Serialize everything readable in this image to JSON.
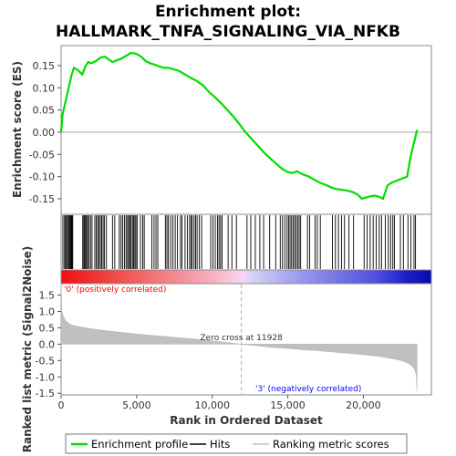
{
  "chart_data": [
    {
      "type": "line",
      "title": "Enrichment plot:",
      "subtitle": "HALLMARK_TNFA_SIGNALING_VIA_NFKB",
      "ylabel": "Enrichment score (ES)",
      "xlim": [
        0,
        24500
      ],
      "ylim": [
        -0.185,
        0.195
      ],
      "y_ticks": [
        "0.15",
        "0.10",
        "0.05",
        "0.00",
        "-0.05",
        "-0.10",
        "-0.15"
      ],
      "y_tick_values": [
        0.15,
        0.1,
        0.05,
        0.0,
        -0.05,
        -0.1,
        -0.15
      ],
      "color": "#00dd00",
      "x": [
        0,
        100,
        300,
        500,
        700,
        850,
        1100,
        1400,
        1600,
        1800,
        2000,
        2300,
        2600,
        2900,
        3100,
        3400,
        3700,
        4000,
        4300,
        4600,
        4800,
        5000,
        5300,
        5600,
        5900,
        6200,
        6500,
        6800,
        7100,
        7400,
        7800,
        8200,
        8600,
        9000,
        9400,
        9800,
        10200,
        10600,
        11000,
        11400,
        11800,
        12200,
        12600,
        13000,
        13400,
        13800,
        14200,
        14600,
        15000,
        15300,
        15600,
        16000,
        16400,
        16800,
        17200,
        17600,
        17900,
        18200,
        18600,
        19000,
        19300,
        19600,
        19900,
        20100,
        20400,
        20700,
        21000,
        21300,
        21600,
        21800,
        22000,
        22300,
        22600,
        22900,
        23100,
        23300,
        23450,
        23550
      ],
      "values": [
        0.0,
        0.04,
        0.07,
        0.1,
        0.13,
        0.145,
        0.14,
        0.13,
        0.148,
        0.158,
        0.155,
        0.16,
        0.168,
        0.17,
        0.165,
        0.158,
        0.162,
        0.166,
        0.172,
        0.178,
        0.178,
        0.176,
        0.17,
        0.16,
        0.155,
        0.152,
        0.148,
        0.145,
        0.145,
        0.142,
        0.138,
        0.13,
        0.122,
        0.115,
        0.105,
        0.09,
        0.078,
        0.065,
        0.05,
        0.035,
        0.018,
        0.0,
        -0.015,
        -0.03,
        -0.045,
        -0.058,
        -0.07,
        -0.082,
        -0.09,
        -0.092,
        -0.088,
        -0.095,
        -0.1,
        -0.108,
        -0.115,
        -0.12,
        -0.125,
        -0.128,
        -0.13,
        -0.132,
        -0.135,
        -0.14,
        -0.15,
        -0.148,
        -0.145,
        -0.143,
        -0.145,
        -0.15,
        -0.12,
        -0.115,
        -0.112,
        -0.108,
        -0.104,
        -0.1,
        -0.06,
        -0.03,
        -0.01,
        0.005
      ]
    },
    {
      "type": "bar",
      "ylabel": "Ranked list metric (Signal2Noise)",
      "xlabel": "Rank in Ordered Dataset",
      "xlim": [
        0,
        24500
      ],
      "ylim": [
        -1.55,
        1.85
      ],
      "x_ticks": [
        "0",
        "5,000",
        "10,000",
        "15,000",
        "20,000"
      ],
      "x_tick_values": [
        0,
        5000,
        10000,
        15000,
        20000
      ],
      "y_ticks": [
        "1.5",
        "1.0",
        "0.5",
        "0.0",
        "-0.5",
        "-1.0",
        "-1.5"
      ],
      "y_tick_values": [
        1.5,
        1.0,
        0.5,
        0.0,
        -0.5,
        -1.0,
        -1.5
      ],
      "x": [
        0,
        50,
        150,
        300,
        600,
        1000,
        2000,
        3000,
        4000,
        5000,
        6000,
        7000,
        8000,
        9000,
        10000,
        11000,
        11928,
        13000,
        14000,
        15000,
        16000,
        17000,
        18000,
        19000,
        20000,
        21000,
        21500,
        22000,
        22500,
        22900,
        23200,
        23400,
        23500,
        23550
      ],
      "values": [
        1.85,
        1.0,
        0.85,
        0.72,
        0.6,
        0.55,
        0.47,
        0.41,
        0.36,
        0.31,
        0.27,
        0.23,
        0.19,
        0.15,
        0.1,
        0.05,
        0.0,
        -0.05,
        -0.1,
        -0.13,
        -0.17,
        -0.2,
        -0.24,
        -0.28,
        -0.32,
        -0.37,
        -0.41,
        -0.45,
        -0.5,
        -0.57,
        -0.66,
        -0.78,
        -0.95,
        -1.45
      ],
      "fill_color": "#c0c0c0",
      "annotations": {
        "zero_cross": "Zero cross at 11928",
        "zero_cross_rank": 11928,
        "positive_label": "'0' (positively correlated)",
        "negative_label": "'3' (negatively correlated)",
        "positive_color": "#ff0000",
        "negative_color": "#0000ff"
      }
    }
  ],
  "hits": [
    120,
    230,
    290,
    360,
    430,
    500,
    560,
    610,
    670,
    720,
    770,
    1430,
    1500,
    1560,
    1620,
    1690,
    1760,
    1850,
    1950,
    2050,
    2230,
    2330,
    2420,
    2500,
    2600,
    2680,
    2780,
    2860,
    3000,
    3400,
    3550,
    3850,
    3970,
    4080,
    4200,
    4300,
    4400,
    4470,
    4550,
    4630,
    4720,
    4800,
    4880,
    4950,
    5030,
    5250,
    5400,
    5500,
    6000,
    6150,
    6280,
    6400,
    6900,
    7000,
    7100,
    7250,
    7400,
    7550,
    7700,
    7900,
    8000,
    8200,
    8350,
    8500,
    8600,
    8680,
    8800,
    8900,
    9000,
    9150,
    9300,
    9900,
    10050,
    10200,
    10350,
    10450,
    10550,
    10650,
    11050,
    11300,
    11600,
    12300,
    12550,
    12850,
    13150,
    13400,
    13800,
    14200,
    14500,
    14650,
    14800,
    14950,
    15050,
    15150,
    15250,
    15350,
    15450,
    15550,
    15650,
    15750,
    15850,
    16300,
    16450,
    16800,
    16950,
    17150,
    17950,
    18150,
    18350,
    18550,
    18750,
    19050,
    19350,
    20050,
    20250,
    20450,
    20650,
    20850,
    21050,
    21200,
    21450,
    21650,
    21800,
    21950,
    22050,
    22450,
    22650,
    22950,
    23150,
    23350,
    23450
  ],
  "legend": {
    "items": [
      {
        "label": "Enrichment profile",
        "color": "#00dd00"
      },
      {
        "label": "Hits",
        "color": "#000000"
      },
      {
        "label": "Ranking metric scores",
        "color": "#c0c0c0"
      }
    ]
  }
}
